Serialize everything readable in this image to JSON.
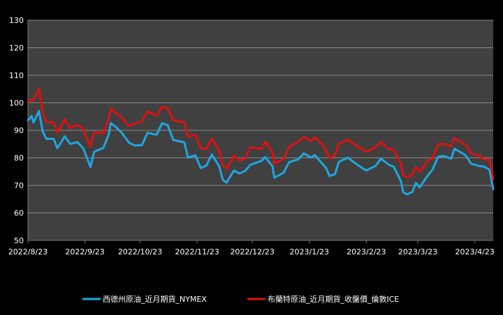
{
  "chart_data": {
    "type": "line",
    "title": "",
    "xlabel": "",
    "ylabel": "",
    "ylim": [
      50,
      130
    ],
    "yticks": [
      50,
      60,
      70,
      80,
      90,
      100,
      110,
      120,
      130
    ],
    "grid": true,
    "legend_position": "bottom",
    "x_tick_labels": [
      "2022/8/23",
      "2022/9/23",
      "2022/10/23",
      "2022/11/23",
      "2022/12/23",
      "2023/1/23",
      "2023/2/23",
      "2023/3/23",
      "2023/4/23"
    ],
    "colors": {
      "background": "#000000",
      "plot_area": "#404040",
      "grid": "#8a8a8a",
      "text": "#ffffff"
    },
    "series": [
      {
        "name": "西德州原油_近月期貨_NYMEX",
        "color": "#1ea7e1",
        "points": [
          [
            "2022-08-23",
            93.7
          ],
          [
            "2022-08-25",
            95.2
          ],
          [
            "2022-08-26",
            92.8
          ],
          [
            "2022-08-29",
            97.0
          ],
          [
            "2022-08-31",
            89.6
          ],
          [
            "2022-09-02",
            86.9
          ],
          [
            "2022-09-06",
            86.9
          ],
          [
            "2022-09-08",
            83.5
          ],
          [
            "2022-09-12",
            87.8
          ],
          [
            "2022-09-15",
            85.1
          ],
          [
            "2022-09-19",
            85.7
          ],
          [
            "2022-09-22",
            83.5
          ],
          [
            "2022-09-26",
            76.7
          ],
          [
            "2022-09-28",
            82.2
          ],
          [
            "2022-10-03",
            83.6
          ],
          [
            "2022-10-06",
            88.5
          ],
          [
            "2022-10-07",
            92.6
          ],
          [
            "2022-10-10",
            91.1
          ],
          [
            "2022-10-13",
            89.1
          ],
          [
            "2022-10-17",
            85.5
          ],
          [
            "2022-10-20",
            84.5
          ],
          [
            "2022-10-24",
            84.6
          ],
          [
            "2022-10-27",
            89.1
          ],
          [
            "2022-11-01",
            88.4
          ],
          [
            "2022-11-04",
            92.6
          ],
          [
            "2022-11-07",
            91.8
          ],
          [
            "2022-11-10",
            86.5
          ],
          [
            "2022-11-14",
            85.9
          ],
          [
            "2022-11-16",
            85.6
          ],
          [
            "2022-11-18",
            80.1
          ],
          [
            "2022-11-22",
            80.9
          ],
          [
            "2022-11-25",
            76.3
          ],
          [
            "2022-11-28",
            77.2
          ],
          [
            "2022-12-01",
            81.2
          ],
          [
            "2022-12-05",
            76.9
          ],
          [
            "2022-12-07",
            72.0
          ],
          [
            "2022-12-09",
            71.0
          ],
          [
            "2022-12-13",
            75.4
          ],
          [
            "2022-12-16",
            74.3
          ],
          [
            "2022-12-19",
            75.2
          ],
          [
            "2022-12-22",
            77.5
          ],
          [
            "2022-12-28",
            78.9
          ],
          [
            "2022-12-30",
            80.3
          ],
          [
            "2023-01-03",
            76.9
          ],
          [
            "2023-01-04",
            72.8
          ],
          [
            "2023-01-09",
            74.6
          ],
          [
            "2023-01-12",
            78.4
          ],
          [
            "2023-01-17",
            79.5
          ],
          [
            "2023-01-20",
            81.6
          ],
          [
            "2023-01-24",
            80.1
          ],
          [
            "2023-01-26",
            81.0
          ],
          [
            "2023-01-30",
            77.9
          ],
          [
            "2023-02-01",
            76.4
          ],
          [
            "2023-02-03",
            73.4
          ],
          [
            "2023-02-06",
            74.1
          ],
          [
            "2023-02-08",
            78.5
          ],
          [
            "2023-02-13",
            80.1
          ],
          [
            "2023-02-16",
            78.5
          ],
          [
            "2023-02-21",
            76.2
          ],
          [
            "2023-02-23",
            75.4
          ],
          [
            "2023-02-28",
            77.1
          ],
          [
            "2023-03-03",
            79.7
          ],
          [
            "2023-03-07",
            77.6
          ],
          [
            "2023-03-10",
            76.7
          ],
          [
            "2023-03-14",
            71.3
          ],
          [
            "2023-03-15",
            67.6
          ],
          [
            "2023-03-17",
            66.7
          ],
          [
            "2023-03-20",
            67.6
          ],
          [
            "2023-03-22",
            70.9
          ],
          [
            "2023-03-24",
            69.3
          ],
          [
            "2023-03-28",
            73.2
          ],
          [
            "2023-03-31",
            75.7
          ],
          [
            "2023-04-03",
            80.4
          ],
          [
            "2023-04-06",
            80.7
          ],
          [
            "2023-04-10",
            79.7
          ],
          [
            "2023-04-12",
            83.3
          ],
          [
            "2023-04-14",
            82.5
          ],
          [
            "2023-04-18",
            80.9
          ],
          [
            "2023-04-21",
            77.9
          ],
          [
            "2023-04-25",
            77.1
          ],
          [
            "2023-04-28",
            76.8
          ],
          [
            "2023-05-01",
            75.7
          ],
          [
            "2023-05-03",
            68.6
          ]
        ]
      },
      {
        "name": "布蘭特原油_近月期貨_收盤價_倫敦ICE",
        "color": "#e01010",
        "points": [
          [
            "2022-08-23",
            100.2
          ],
          [
            "2022-08-25",
            101.2
          ],
          [
            "2022-08-26",
            100.9
          ],
          [
            "2022-08-29",
            105.1
          ],
          [
            "2022-08-31",
            96.5
          ],
          [
            "2022-09-02",
            93.0
          ],
          [
            "2022-09-06",
            92.8
          ],
          [
            "2022-09-08",
            89.2
          ],
          [
            "2022-09-12",
            94.0
          ],
          [
            "2022-09-15",
            90.8
          ],
          [
            "2022-09-19",
            92.0
          ],
          [
            "2022-09-22",
            90.5
          ],
          [
            "2022-09-26",
            84.1
          ],
          [
            "2022-09-28",
            89.3
          ],
          [
            "2022-10-03",
            88.9
          ],
          [
            "2022-10-06",
            94.4
          ],
          [
            "2022-10-07",
            97.9
          ],
          [
            "2022-10-10",
            96.2
          ],
          [
            "2022-10-13",
            94.6
          ],
          [
            "2022-10-17",
            91.6
          ],
          [
            "2022-10-20",
            92.4
          ],
          [
            "2022-10-24",
            93.3
          ],
          [
            "2022-10-27",
            96.9
          ],
          [
            "2022-11-01",
            95.3
          ],
          [
            "2022-11-04",
            98.6
          ],
          [
            "2022-11-07",
            97.9
          ],
          [
            "2022-11-10",
            93.7
          ],
          [
            "2022-11-14",
            93.1
          ],
          [
            "2022-11-16",
            92.9
          ],
          [
            "2022-11-18",
            87.6
          ],
          [
            "2022-11-22",
            88.4
          ],
          [
            "2022-11-25",
            83.6
          ],
          [
            "2022-11-28",
            83.2
          ],
          [
            "2022-12-01",
            86.9
          ],
          [
            "2022-12-05",
            82.7
          ],
          [
            "2022-12-07",
            77.2
          ],
          [
            "2022-12-09",
            76.1
          ],
          [
            "2022-12-13",
            80.7
          ],
          [
            "2022-12-16",
            79.0
          ],
          [
            "2022-12-19",
            79.8
          ],
          [
            "2022-12-22",
            83.9
          ],
          [
            "2022-12-28",
            83.3
          ],
          [
            "2022-12-30",
            85.9
          ],
          [
            "2023-01-03",
            82.1
          ],
          [
            "2023-01-04",
            77.8
          ],
          [
            "2023-01-09",
            79.7
          ],
          [
            "2023-01-12",
            84.0
          ],
          [
            "2023-01-17",
            85.9
          ],
          [
            "2023-01-20",
            87.6
          ],
          [
            "2023-01-24",
            86.1
          ],
          [
            "2023-01-26",
            87.5
          ],
          [
            "2023-01-30",
            84.9
          ],
          [
            "2023-02-01",
            82.8
          ],
          [
            "2023-02-03",
            79.9
          ],
          [
            "2023-02-06",
            80.9
          ],
          [
            "2023-02-08",
            85.1
          ],
          [
            "2023-02-13",
            86.6
          ],
          [
            "2023-02-16",
            85.1
          ],
          [
            "2023-02-21",
            83.1
          ],
          [
            "2023-02-23",
            82.2
          ],
          [
            "2023-02-28",
            83.9
          ],
          [
            "2023-03-03",
            85.8
          ],
          [
            "2023-03-07",
            83.3
          ],
          [
            "2023-03-10",
            82.8
          ],
          [
            "2023-03-14",
            77.5
          ],
          [
            "2023-03-15",
            73.7
          ],
          [
            "2023-03-17",
            73.0
          ],
          [
            "2023-03-20",
            73.8
          ],
          [
            "2023-03-22",
            76.7
          ],
          [
            "2023-03-24",
            74.9
          ],
          [
            "2023-03-28",
            78.7
          ],
          [
            "2023-03-31",
            79.8
          ],
          [
            "2023-04-03",
            84.9
          ],
          [
            "2023-04-06",
            85.1
          ],
          [
            "2023-04-10",
            84.2
          ],
          [
            "2023-04-12",
            87.3
          ],
          [
            "2023-04-14",
            86.3
          ],
          [
            "2023-04-18",
            84.8
          ],
          [
            "2023-04-21",
            81.7
          ],
          [
            "2023-04-25",
            80.8
          ],
          [
            "2023-04-28",
            79.5
          ],
          [
            "2023-05-01",
            79.3
          ],
          [
            "2023-05-03",
            72.3
          ]
        ]
      }
    ]
  }
}
